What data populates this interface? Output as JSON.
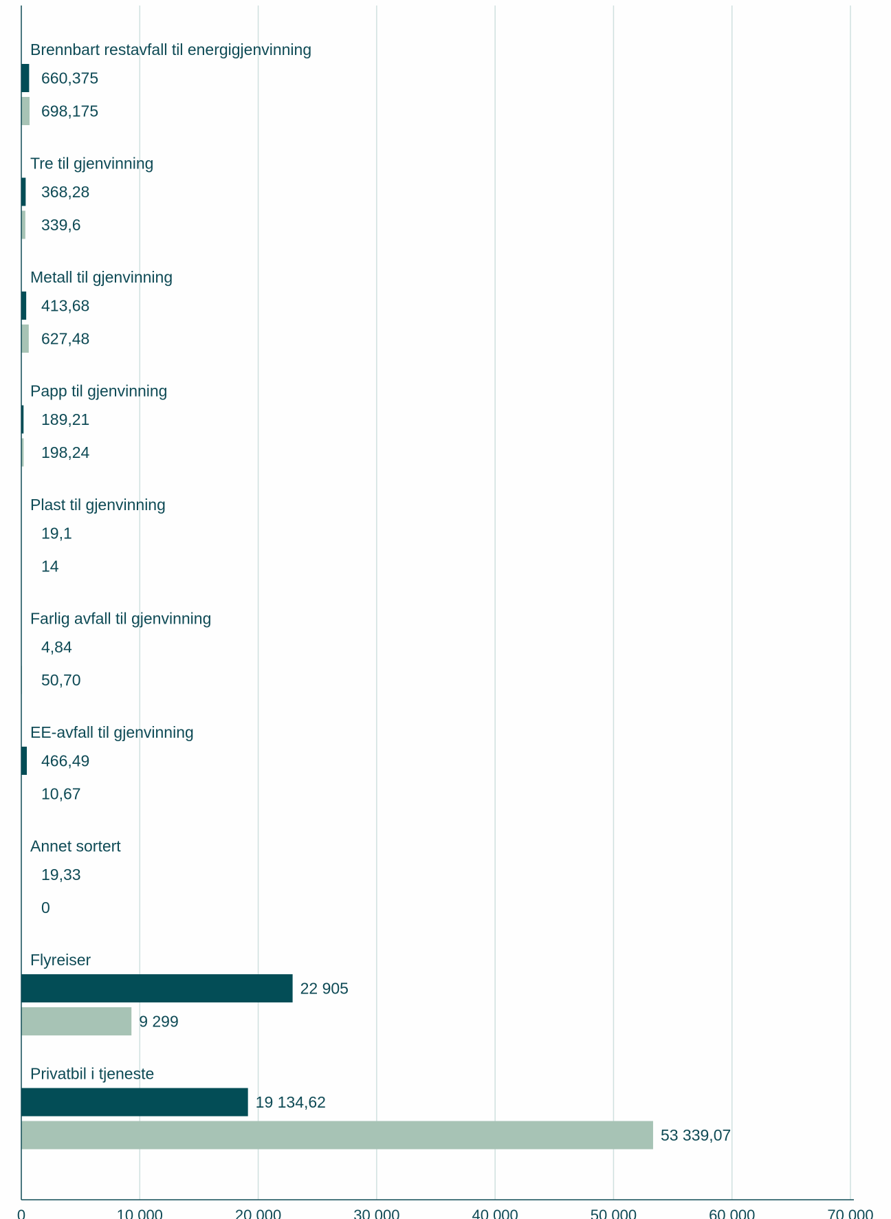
{
  "chart_data": {
    "type": "bar",
    "orientation": "horizontal",
    "title": "",
    "xlabel": "",
    "ylabel": "",
    "xlim": [
      0,
      70000
    ],
    "x_ticks": [
      {
        "value": 0,
        "label": "0"
      },
      {
        "value": 10000,
        "label": "10 000"
      },
      {
        "value": 20000,
        "label": "20 000"
      },
      {
        "value": 30000,
        "label": "30 000"
      },
      {
        "value": 40000,
        "label": "40 000"
      },
      {
        "value": 50000,
        "label": "50 000"
      },
      {
        "value": 60000,
        "label": "60 000"
      },
      {
        "value": 70000,
        "label": "70 000"
      }
    ],
    "grid": true,
    "legend": "none",
    "colors": {
      "series_1": "#034d56",
      "series_2": "#a7c3b5"
    },
    "categories": [
      "Brennbart restavfall til energigjenvinning",
      "Tre til gjenvinning",
      "Metall til gjenvinning",
      "Papp til gjenvinning",
      "Plast til gjenvinning",
      "Farlig avfall til gjenvinning",
      "EE-avfall til gjenvinning",
      "Annet sortert",
      "Flyreiser",
      "Privatbil i tjeneste"
    ],
    "series": [
      {
        "values": [
          660.375,
          368.28,
          413.68,
          189.21,
          19.1,
          4.84,
          466.49,
          19.33,
          22905,
          19134.62
        ],
        "labels": [
          "660,375",
          "368,28",
          "413,68",
          "189,21",
          "19,1",
          "4,84",
          "466,49",
          "19,33",
          "22 905",
          "19 134,62"
        ]
      },
      {
        "values": [
          698.175,
          339.6,
          627.48,
          198.24,
          14,
          50.7,
          10.67,
          0,
          9299,
          53339.07
        ],
        "labels": [
          "698,175",
          "339,6",
          "627,48",
          "198,24",
          "14",
          "50,70",
          "10,67",
          "0",
          "9 299",
          "53 339,07"
        ]
      }
    ]
  }
}
